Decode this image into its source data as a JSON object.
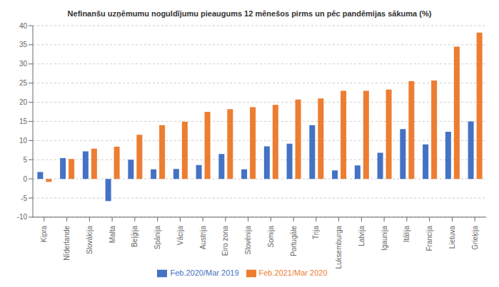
{
  "chart_data": {
    "type": "bar",
    "title": "Nefinanšu uzņēmumu noguldījumu pieaugums 12 mēnešos pirms un pēc pandēmijas sākuma (%)",
    "categories": [
      "Kipra",
      "Nīderlande",
      "Slovākija",
      "Malta",
      "Beļģija",
      "Spānija",
      "Vācija",
      "Austrija",
      "Eiro zona",
      "Slovēnija",
      "Somija",
      "Portugāle",
      "Trija",
      "Luksemburga",
      "Latvija",
      "Igaunija",
      "Itālija",
      "Francija",
      "Lietuva",
      "Grieķija"
    ],
    "series": [
      {
        "name": "Feb.2020/Mar 2019",
        "color": "#4472C4",
        "values": [
          1.8,
          5.4,
          7.2,
          -5.8,
          5.0,
          2.5,
          2.6,
          3.6,
          6.5,
          2.5,
          8.5,
          9.2,
          14.0,
          2.2,
          3.5,
          6.8,
          13.0,
          9.0,
          12.3,
          15.0
        ]
      },
      {
        "name": "Feb.2021/Mar 2020",
        "color": "#ED7D31",
        "values": [
          -0.8,
          5.2,
          7.9,
          8.4,
          11.5,
          14.0,
          14.9,
          17.5,
          18.2,
          18.7,
          19.3,
          20.7,
          21.0,
          23.0,
          23.0,
          23.3,
          25.5,
          25.7,
          34.5,
          38.2
        ]
      }
    ],
    "ylim": [
      -10,
      40
    ],
    "yticks": [
      -10,
      -5,
      0,
      5,
      10,
      15,
      20,
      25,
      30,
      35,
      40
    ],
    "grid": true,
    "legend": "bottom"
  }
}
